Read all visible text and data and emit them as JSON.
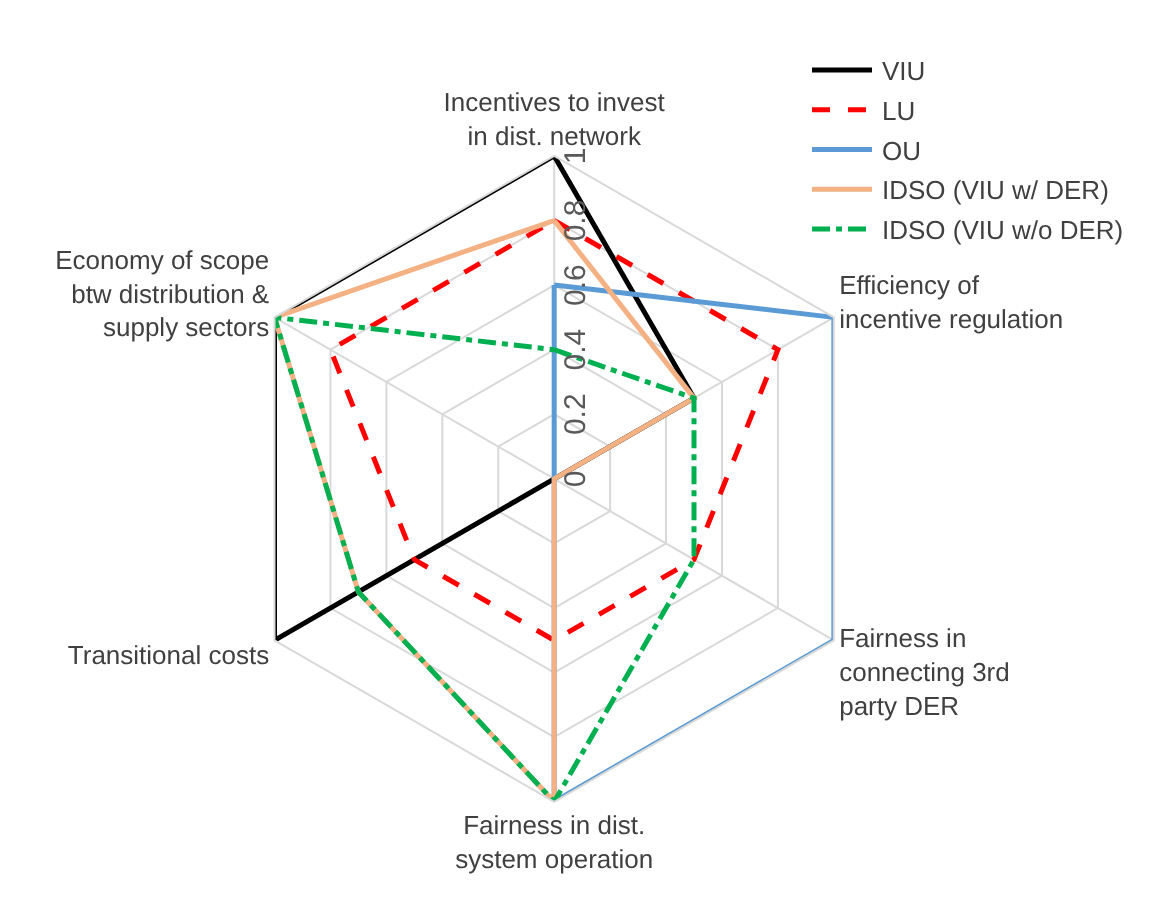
{
  "chart_data": {
    "type": "radar",
    "categories": [
      "Incentives to invest\nin dist. network",
      "Efficiency of\nincentive regulation",
      "Fairness in\nconnecting 3rd\nparty DER",
      "Fairness in dist.\nsystem operation",
      "Transitional costs",
      "Economy of scope\nbtw distribution &\nsupply sectors"
    ],
    "series": [
      {
        "name": "VIU",
        "color": "#000000",
        "line_style": "solid",
        "values": [
          1,
          0.5,
          0,
          0,
          1,
          1
        ]
      },
      {
        "name": "LU",
        "color": "#ff0000",
        "line_style": "dashed",
        "values": [
          0.8,
          0.8,
          0.5,
          0.5,
          0.5,
          0.8
        ]
      },
      {
        "name": "OU",
        "color": "#5b9bd5",
        "line_style": "solid",
        "values": [
          0.6,
          1,
          1,
          1,
          0,
          0
        ]
      },
      {
        "name": "IDSO (VIU w/ DER)",
        "color": "#f4b183",
        "line_style": "solid",
        "values": [
          0.8,
          0.5,
          0,
          1,
          0.7,
          1
        ]
      },
      {
        "name": "IDSO (VIU w/o DER)",
        "color": "#00b050",
        "line_style": "dashdot",
        "values": [
          0.4,
          0.5,
          0.5,
          1,
          0.7,
          1
        ]
      }
    ],
    "ylim": [
      0,
      1
    ],
    "yticks": [
      0,
      0.2,
      0.4,
      0.6,
      0.8,
      1
    ],
    "grid": true,
    "legend": "top right",
    "marker": "none"
  }
}
